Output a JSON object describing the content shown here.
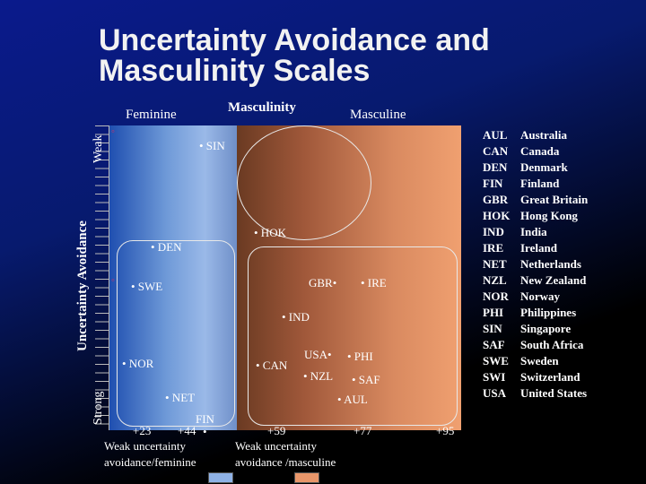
{
  "title": {
    "line1": "Uncertainty Avoidance and",
    "line2": "Masculinity Scales"
  },
  "axes": {
    "feminine": "Feminine",
    "masculinity": "Masculinity",
    "masculine": "Masculine",
    "weak": "Weak",
    "strong": "Strong",
    "uncertainty_avoidance": "Uncertainty Avoidance"
  },
  "points": {
    "sin": "• SIN",
    "hok": "• HOK",
    "den": "• DEN",
    "swe": "• SWE",
    "gbr": "GBR•",
    "ire": "• IRE",
    "ind": "• IND",
    "usa": "USA•",
    "phi": "• PHI",
    "nor": "• NOR",
    "can": "• CAN",
    "nzl": "• NZL",
    "saf": "• SAF",
    "net": "• NET",
    "aul": "• AUL",
    "fin": "FIN"
  },
  "scale": {
    "v23": "+23",
    "v44": "+44",
    "v59": "+59",
    "v77": "+77",
    "v95": "+95"
  },
  "regions": {
    "left_line1": "Weak uncertainty",
    "left_line2": "avoidance/feminine",
    "right_line1": "Weak uncertainty",
    "right_line2": "avoidance /masculine"
  },
  "legend": [
    {
      "code": "AUL",
      "name": "Australia"
    },
    {
      "code": "CAN",
      "name": "Canada"
    },
    {
      "code": "DEN",
      "name": "Denmark"
    },
    {
      "code": "FIN",
      "name": "Finland"
    },
    {
      "code": "GBR",
      "name": "Great Britain"
    },
    {
      "code": "HOK",
      "name": "Hong Kong"
    },
    {
      "code": "IND",
      "name": "India"
    },
    {
      "code": "IRE",
      "name": "Ireland"
    },
    {
      "code": "NET",
      "name": "Netherlands"
    },
    {
      "code": "NZL",
      "name": "New Zealand"
    },
    {
      "code": "NOR",
      "name": "Norway"
    },
    {
      "code": "PHI",
      "name": "Philippines"
    },
    {
      "code": "SIN",
      "name": "Singapore"
    },
    {
      "code": "SAF",
      "name": "South Africa"
    },
    {
      "code": "SWE",
      "name": "Sweden"
    },
    {
      "code": "SWI",
      "name": "Switzerland"
    },
    {
      "code": "USA",
      "name": "United States"
    }
  ],
  "colors": {
    "feminine_panel": "#8fb2e6",
    "masculine_panel": "#e8966a"
  }
}
